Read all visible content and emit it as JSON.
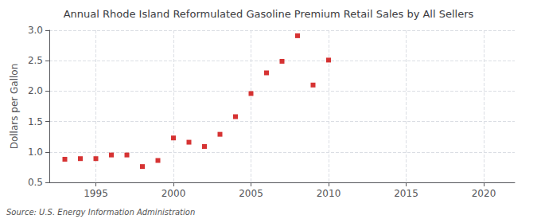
{
  "chart_data": {
    "type": "scatter",
    "title": "Annual Rhode Island Reformulated Gasoline Premium Retail Sales by All Sellers",
    "ylabel": "Dollars per Gallon",
    "annotation": "Source: U.S. Energy Information Administration",
    "x": [
      1993,
      1994,
      1995,
      1996,
      1997,
      1998,
      1999,
      2000,
      2001,
      2002,
      2003,
      2004,
      2005,
      2006,
      2007,
      2008,
      2009,
      2010
    ],
    "values": [
      0.88,
      0.89,
      0.89,
      0.95,
      0.95,
      0.76,
      0.86,
      1.23,
      1.16,
      1.09,
      1.29,
      1.58,
      1.96,
      2.3,
      2.49,
      2.91,
      2.1,
      2.51
    ],
    "color": "#cc0000",
    "marker": "square",
    "xlim": [
      1992,
      2022
    ],
    "xticks": [
      1995,
      2000,
      2005,
      2010,
      2015,
      2020
    ],
    "ylim": [
      0.5,
      3.0
    ],
    "yticks": [
      0.5,
      {
        "value": 1,
        "label": "1.0"
      },
      1.5,
      {
        "value": 2,
        "label": "2.0"
      },
      2.5,
      {
        "value": 3,
        "label": "3.0"
      }
    ],
    "grid": true
  }
}
